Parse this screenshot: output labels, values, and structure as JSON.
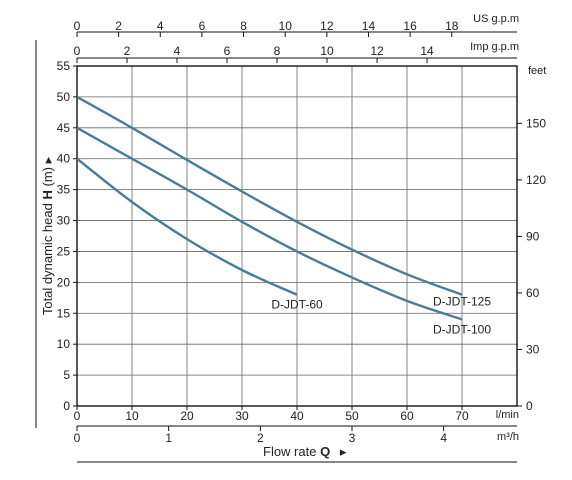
{
  "chart_data": {
    "type": "line",
    "x_label": "Flow rate",
    "x_label_symbol": "Q",
    "x_arrow": "▸",
    "y_label": "Total dynamic head",
    "y_label_symbol": "H",
    "y_label_unit": "(m)",
    "y_arrow": "▸",
    "x_unit_primary": "l/min",
    "x_unit_m3h": "m³/h",
    "x_unit_us": "US g.p.m",
    "x_unit_imp": "Imp g.p.m",
    "y_unit_right": "feet",
    "xlim": [
      0,
      80
    ],
    "ylim": [
      0,
      55
    ],
    "x_ticks_lpm": [
      0,
      10,
      20,
      30,
      40,
      50,
      60,
      70
    ],
    "y_ticks_m": [
      0,
      5,
      10,
      15,
      20,
      25,
      30,
      35,
      40,
      45,
      50,
      55
    ],
    "m3h_ticks": [
      0,
      1,
      2,
      3,
      4
    ],
    "us_gpm_ticks": [
      0,
      2,
      4,
      6,
      8,
      10,
      12,
      14,
      16,
      18
    ],
    "imp_gpm_ticks": [
      0,
      2,
      4,
      6,
      8,
      10,
      12,
      14
    ],
    "feet_ticks": [
      0,
      30,
      60,
      90,
      120,
      150
    ],
    "grid": true,
    "series": [
      {
        "name": "D-JDT-125",
        "x": [
          0,
          10,
          20,
          30,
          40,
          50,
          60,
          70
        ],
        "y": [
          50,
          45,
          39.8,
          34.7,
          29.8,
          25.3,
          21.3,
          18
        ]
      },
      {
        "name": "D-JDT-100",
        "x": [
          0,
          10,
          20,
          30,
          40,
          50,
          60,
          70
        ],
        "y": [
          45,
          40,
          35,
          29.8,
          25,
          20.8,
          17,
          14
        ]
      },
      {
        "name": "D-JDT-60",
        "x": [
          0,
          10,
          20,
          30,
          40
        ],
        "y": [
          40,
          33,
          27,
          22,
          18
        ]
      }
    ]
  }
}
